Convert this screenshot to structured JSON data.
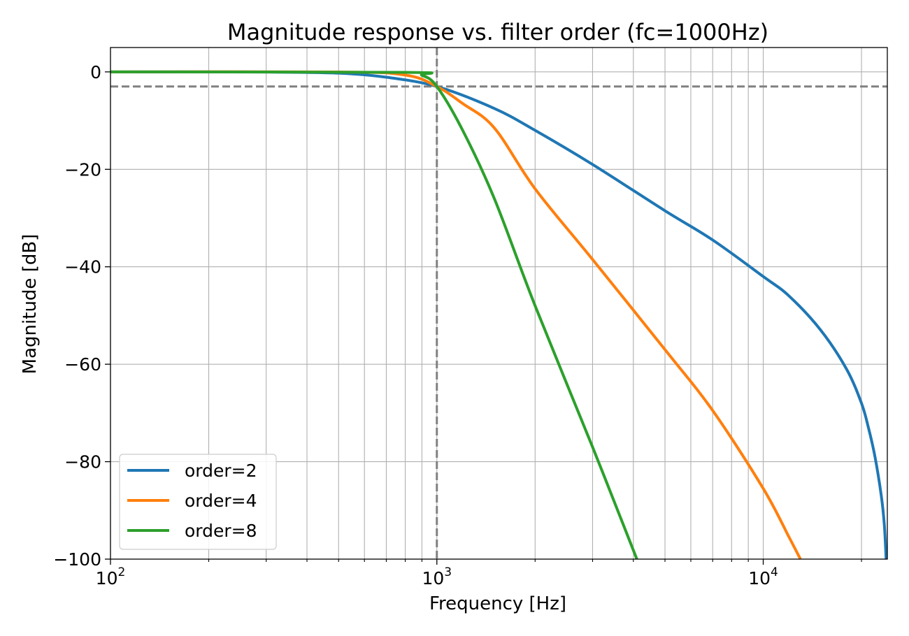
{
  "chart_data": {
    "type": "line",
    "title": "Magnitude response vs. filter order (fc=1000Hz)",
    "xlabel": "Frequency [Hz]",
    "ylabel": "Magnitude [dB]",
    "xscale": "log",
    "xlim": [
      100,
      24000
    ],
    "ylim": [
      -100,
      5
    ],
    "x_ticks": [
      {
        "value": 100,
        "base": "10",
        "exp": "2"
      },
      {
        "value": 1000,
        "base": "10",
        "exp": "3"
      },
      {
        "value": 10000,
        "base": "10",
        "exp": "4"
      }
    ],
    "y_ticks": [
      {
        "value": 0,
        "label": "0"
      },
      {
        "value": -20,
        "label": "−20"
      },
      {
        "value": -40,
        "label": "−40"
      },
      {
        "value": -60,
        "label": "−60"
      },
      {
        "value": -80,
        "label": "−80"
      },
      {
        "value": -100,
        "label": "−100"
      }
    ],
    "grid": true,
    "reference_lines": [
      {
        "orientation": "vertical",
        "value": 1000,
        "style": "dashed",
        "color": "#808080"
      },
      {
        "orientation": "horizontal",
        "value": -3,
        "style": "dashed",
        "color": "#808080"
      }
    ],
    "legend_position": "lower-left",
    "series": [
      {
        "name": "order=2",
        "color": "#1f77b4",
        "points": [
          [
            100,
            0
          ],
          [
            300,
            -0.04
          ],
          [
            500,
            -0.26
          ],
          [
            700,
            -1.1
          ],
          [
            1000,
            -3
          ],
          [
            1500,
            -7.5
          ],
          [
            2000,
            -12
          ],
          [
            3000,
            -19
          ],
          [
            5000,
            -28.5
          ],
          [
            7000,
            -34.5
          ],
          [
            10000,
            -42
          ],
          [
            12000,
            -46
          ],
          [
            15000,
            -53
          ],
          [
            18000,
            -61
          ],
          [
            20000,
            -68
          ],
          [
            21000,
            -73
          ],
          [
            22000,
            -79
          ],
          [
            23000,
            -87
          ],
          [
            23500,
            -93
          ],
          [
            23800,
            -100
          ]
        ]
      },
      {
        "name": "order=4",
        "color": "#ff7f0e",
        "points": [
          [
            100,
            0
          ],
          [
            500,
            -0.02
          ],
          [
            800,
            -0.65
          ],
          [
            1000,
            -3
          ],
          [
            1200,
            -6.5
          ],
          [
            1500,
            -11.5
          ],
          [
            2000,
            -24
          ],
          [
            3000,
            -38.5
          ],
          [
            5000,
            -57
          ],
          [
            7000,
            -69.5
          ],
          [
            10000,
            -85.5
          ],
          [
            12000,
            -95.5
          ],
          [
            13000,
            -100
          ]
        ]
      },
      {
        "name": "order=8",
        "color": "#2ca02c",
        "points": [
          [
            100,
            0
          ],
          [
            800,
            -0.1
          ],
          [
            900,
            -0.7
          ],
          [
            1000,
            -3
          ],
          [
            1200,
            -12
          ],
          [
            1500,
            -26
          ],
          [
            2000,
            -48
          ],
          [
            3000,
            -77
          ],
          [
            4100,
            -100
          ]
        ]
      }
    ]
  }
}
